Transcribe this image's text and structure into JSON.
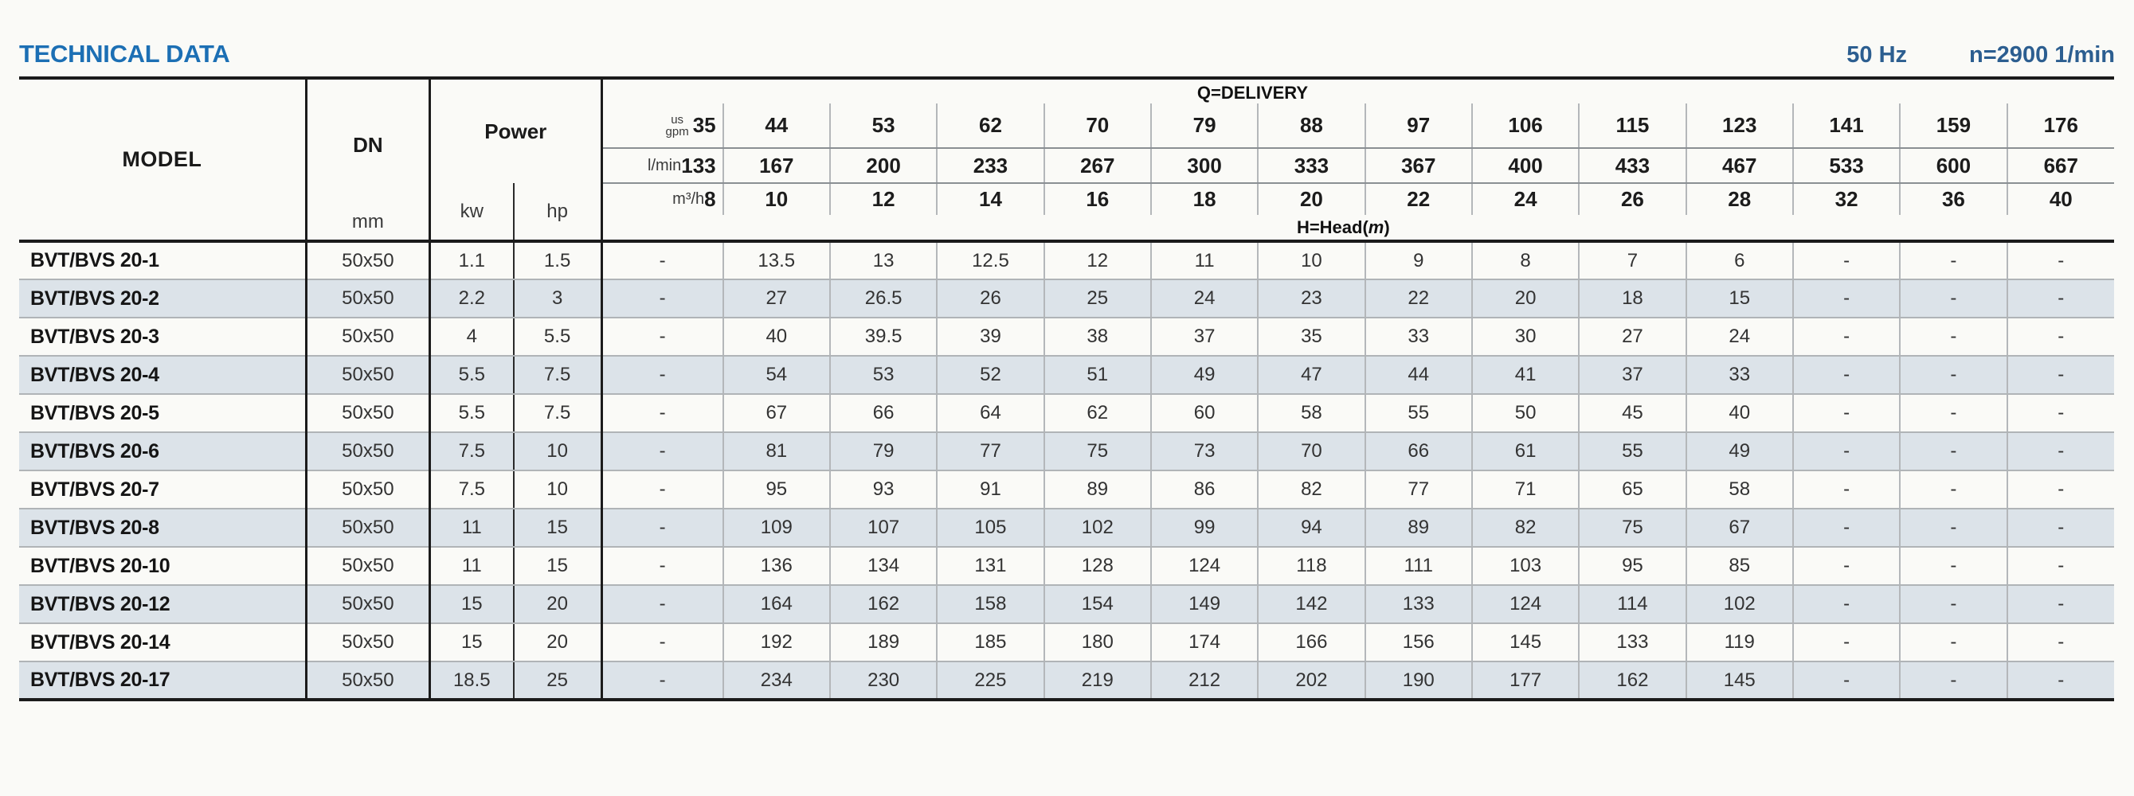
{
  "title": "TECHNICAL DATA",
  "frequency": "50 Hz",
  "speed": "n=2900 1/min",
  "table": {
    "col_model": "MODEL",
    "col_dn": "DN",
    "col_dn_unit": "mm",
    "col_power": "Power",
    "col_kw": "kw",
    "col_hp": "hp",
    "delivery_label": "Q=DELIVERY",
    "head_label_prefix": "H=Head(",
    "head_label_m": "m",
    "head_label_suffix": ")",
    "unit_gpm_top": "us",
    "unit_gpm_bottom": "gpm",
    "unit_lmin": "l/min",
    "unit_m3h": "m³/h",
    "gpm": [
      "35",
      "44",
      "53",
      "62",
      "70",
      "79",
      "88",
      "97",
      "106",
      "115",
      "123",
      "141",
      "159",
      "176"
    ],
    "lmin": [
      "133",
      "167",
      "200",
      "233",
      "267",
      "300",
      "333",
      "367",
      "400",
      "433",
      "467",
      "533",
      "600",
      "667"
    ],
    "m3h": [
      "8",
      "10",
      "12",
      "14",
      "16",
      "18",
      "20",
      "22",
      "24",
      "26",
      "28",
      "32",
      "36",
      "40"
    ],
    "rows": [
      {
        "model": "BVT/BVS 20-1",
        "dn": "50x50",
        "kw": "1.1",
        "hp": "1.5",
        "values": [
          "-",
          "13.5",
          "13",
          "12.5",
          "12",
          "11",
          "10",
          "9",
          "8",
          "7",
          "6",
          "-",
          "-",
          "-"
        ]
      },
      {
        "model": "BVT/BVS 20-2",
        "dn": "50x50",
        "kw": "2.2",
        "hp": "3",
        "values": [
          "-",
          "27",
          "26.5",
          "26",
          "25",
          "24",
          "23",
          "22",
          "20",
          "18",
          "15",
          "-",
          "-",
          "-"
        ]
      },
      {
        "model": "BVT/BVS 20-3",
        "dn": "50x50",
        "kw": "4",
        "hp": "5.5",
        "values": [
          "-",
          "40",
          "39.5",
          "39",
          "38",
          "37",
          "35",
          "33",
          "30",
          "27",
          "24",
          "-",
          "-",
          "-"
        ]
      },
      {
        "model": "BVT/BVS 20-4",
        "dn": "50x50",
        "kw": "5.5",
        "hp": "7.5",
        "values": [
          "-",
          "54",
          "53",
          "52",
          "51",
          "49",
          "47",
          "44",
          "41",
          "37",
          "33",
          "-",
          "-",
          "-"
        ]
      },
      {
        "model": "BVT/BVS 20-5",
        "dn": "50x50",
        "kw": "5.5",
        "hp": "7.5",
        "values": [
          "-",
          "67",
          "66",
          "64",
          "62",
          "60",
          "58",
          "55",
          "50",
          "45",
          "40",
          "-",
          "-",
          "-"
        ]
      },
      {
        "model": "BVT/BVS 20-6",
        "dn": "50x50",
        "kw": "7.5",
        "hp": "10",
        "values": [
          "-",
          "81",
          "79",
          "77",
          "75",
          "73",
          "70",
          "66",
          "61",
          "55",
          "49",
          "-",
          "-",
          "-"
        ]
      },
      {
        "model": "BVT/BVS 20-7",
        "dn": "50x50",
        "kw": "7.5",
        "hp": "10",
        "values": [
          "-",
          "95",
          "93",
          "91",
          "89",
          "86",
          "82",
          "77",
          "71",
          "65",
          "58",
          "-",
          "-",
          "-"
        ]
      },
      {
        "model": "BVT/BVS 20-8",
        "dn": "50x50",
        "kw": "11",
        "hp": "15",
        "values": [
          "-",
          "109",
          "107",
          "105",
          "102",
          "99",
          "94",
          "89",
          "82",
          "75",
          "67",
          "-",
          "-",
          "-"
        ]
      },
      {
        "model": "BVT/BVS 20-10",
        "dn": "50x50",
        "kw": "11",
        "hp": "15",
        "values": [
          "-",
          "136",
          "134",
          "131",
          "128",
          "124",
          "118",
          "111",
          "103",
          "95",
          "85",
          "-",
          "-",
          "-"
        ]
      },
      {
        "model": "BVT/BVS 20-12",
        "dn": "50x50",
        "kw": "15",
        "hp": "20",
        "values": [
          "-",
          "164",
          "162",
          "158",
          "154",
          "149",
          "142",
          "133",
          "124",
          "114",
          "102",
          "-",
          "-",
          "-"
        ]
      },
      {
        "model": "BVT/BVS 20-14",
        "dn": "50x50",
        "kw": "15",
        "hp": "20",
        "values": [
          "-",
          "192",
          "189",
          "185",
          "180",
          "174",
          "166",
          "156",
          "145",
          "133",
          "119",
          "-",
          "-",
          "-"
        ]
      },
      {
        "model": "BVT/BVS 20-17",
        "dn": "50x50",
        "kw": "18.5",
        "hp": "25",
        "values": [
          "-",
          "234",
          "230",
          "225",
          "219",
          "212",
          "202",
          "190",
          "177",
          "162",
          "145",
          "-",
          "-",
          "-"
        ]
      }
    ],
    "colors": {
      "title_blue": "#1c6fb4",
      "specs_blue": "#2c5e90",
      "shaded_row": "#dce3e9",
      "border_dark": "#1b1b1b"
    }
  }
}
